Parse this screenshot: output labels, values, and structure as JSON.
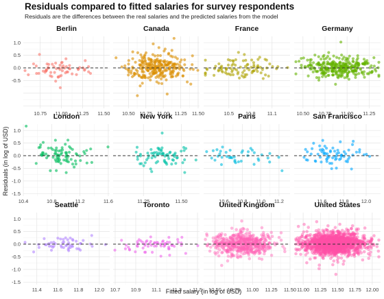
{
  "title": "Residuals compared to fitted salaries for survey respondents",
  "subtitle": "Residuals are the differences between the real salaries and the predicted salaries from the model",
  "xlabel": "Fitted salary (in log of USD)",
  "ylabel": "Residuals (in log of USD)",
  "chart_data": {
    "type": "scatter",
    "facet_layout": "4 columns x 3 rows, free x scales, shared y scale",
    "reference_line": {
      "y": 0,
      "style": "dashed"
    },
    "y_ticks": [
      -1.5,
      -1.0,
      -0.5,
      0.0,
      0.5,
      1.0
    ],
    "ylim": [
      -1.6,
      1.25
    ],
    "row_tick_labels": [
      [
        "-0.5",
        "0.0",
        "0.5",
        "1.0"
      ],
      [
        "-1.5",
        "-1.0",
        "-0.5",
        "0.0",
        "0.5",
        "1.0"
      ],
      [
        "-1.5",
        "-1.0",
        "-0.5",
        "0.0",
        "0.5",
        "1.0"
      ]
    ],
    "grid": true,
    "panels": [
      {
        "name": "Berlin",
        "color": "#F8766D",
        "xlim": [
          10.55,
          11.57
        ],
        "xticks": [
          "10.75",
          "11.00",
          "11.25",
          "11.50"
        ],
        "xtick_values": [
          10.75,
          11.0,
          11.25,
          11.5
        ],
        "n_points": 60,
        "x_center": 11.0,
        "x_spread": 0.22,
        "resid_sd": 0.2
      },
      {
        "name": "Canada",
        "color": "#DB8E00",
        "xlim": [
          10.28,
          11.52
        ],
        "xticks": [
          "10.50",
          "10.75",
          "11.00",
          "11.25",
          "11.50"
        ],
        "xtick_values": [
          10.5,
          10.75,
          11.0,
          11.25,
          11.5
        ],
        "n_points": 260,
        "x_center": 10.9,
        "x_spread": 0.22,
        "resid_sd": 0.25
      },
      {
        "name": "France",
        "color": "#AEA200",
        "xlim": [
          10.15,
          11.35
        ],
        "xticks": [
          "10.5",
          "10.8",
          "11.1"
        ],
        "xtick_values": [
          10.5,
          10.8,
          11.1
        ],
        "n_points": 90,
        "x_center": 10.65,
        "x_spread": 0.25,
        "resid_sd": 0.22
      },
      {
        "name": "Germany",
        "color": "#64B200",
        "xlim": [
          10.4,
          11.38
        ],
        "xticks": [
          "10.50",
          "10.75",
          "11.00",
          "11.25"
        ],
        "xtick_values": [
          10.5,
          10.75,
          11.0,
          11.25
        ],
        "n_points": 300,
        "x_center": 10.9,
        "x_spread": 0.2,
        "resid_sd": 0.2
      },
      {
        "name": "London",
        "color": "#00BD5C",
        "xlim": [
          10.4,
          11.62
        ],
        "xticks": [
          "10.4",
          "10.8",
          "11.2",
          "11.6"
        ],
        "xtick_values": [
          10.4,
          10.8,
          11.2,
          11.6
        ],
        "n_points": 80,
        "x_center": 10.98,
        "x_spread": 0.18,
        "resid_sd": 0.28
      },
      {
        "name": "New York",
        "color": "#00C1A7",
        "xlim": [
          11.05,
          11.62
        ],
        "xticks": [
          "11.25",
          "11.50"
        ],
        "xtick_values": [
          11.25,
          11.5
        ],
        "n_points": 70,
        "x_center": 11.35,
        "x_spread": 0.1,
        "resid_sd": 0.2
      },
      {
        "name": "Paris",
        "color": "#00BADE",
        "xlim": [
          10.38,
          11.32
        ],
        "xticks": [
          "10.6",
          "10.8",
          "11.0",
          "11.2"
        ],
        "xtick_values": [
          10.6,
          10.8,
          11.0,
          11.2
        ],
        "n_points": 40,
        "x_center": 10.8,
        "x_spread": 0.18,
        "resid_sd": 0.2
      },
      {
        "name": "San Francisco",
        "color": "#00A6FF",
        "xlim": [
          11.35,
          12.13
        ],
        "xticks": [
          "11.6",
          "11.8",
          "12.0"
        ],
        "xtick_values": [
          11.6,
          11.8,
          12.0
        ],
        "n_points": 70,
        "x_center": 11.7,
        "x_spread": 0.16,
        "resid_sd": 0.22
      },
      {
        "name": "Seattle",
        "color": "#B385FF",
        "xlim": [
          11.27,
          12.1
        ],
        "xticks": [
          "11.4",
          "11.6",
          "11.8",
          "12.0"
        ],
        "xtick_values": [
          11.4,
          11.6,
          11.8,
          12.0
        ],
        "n_points": 50,
        "x_center": 11.65,
        "x_spread": 0.17,
        "resid_sd": 0.15
      },
      {
        "name": "Toronto",
        "color": "#EF67EB",
        "xlim": [
          10.68,
          11.52
        ],
        "xticks": [
          "10.7",
          "10.9",
          "11.1",
          "11.3",
          "11.5"
        ],
        "xtick_values": [
          10.7,
          10.9,
          11.1,
          11.3,
          11.5
        ],
        "n_points": 60,
        "x_center": 11.05,
        "x_spread": 0.18,
        "resid_sd": 0.15
      },
      {
        "name": "United Kingdom",
        "color": "#FF63B6",
        "xlim": [
          10.35,
          11.5
        ],
        "xticks": [
          "10.50",
          "10.75",
          "11.00",
          "11.25",
          "11.50"
        ],
        "xtick_values": [
          10.5,
          10.75,
          11.0,
          11.25,
          11.5
        ],
        "n_points": 500,
        "x_center": 10.88,
        "x_spread": 0.2,
        "resid_sd": 0.22
      },
      {
        "name": "United States",
        "color": "#FF4FA6",
        "xlim": [
          10.87,
          12.12
        ],
        "xticks": [
          "11.00",
          "11.25",
          "11.50",
          "11.75",
          "12.00"
        ],
        "xtick_values": [
          11.0,
          11.25,
          11.5,
          11.75,
          12.0
        ],
        "n_points": 1300,
        "x_center": 11.45,
        "x_spread": 0.22,
        "resid_sd": 0.22
      }
    ]
  }
}
